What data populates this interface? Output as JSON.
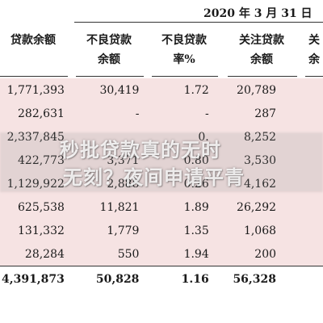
{
  "date_header": "2020 年 3 月 31 日",
  "columns": [
    {
      "line1": "",
      "line2": "贷款余额"
    },
    {
      "line1": "不良贷款",
      "line2": "余额"
    },
    {
      "line1": "不良贷款",
      "line2": "率%"
    },
    {
      "line1": "关注贷款",
      "line2": "余额"
    },
    {
      "line1": "关",
      "line2": "余"
    }
  ],
  "rows": [
    {
      "loan": "1,771,393",
      "npl": "30,419",
      "ratio": "1.72",
      "watch": "20,789"
    },
    {
      "loan": "282,631",
      "npl": "-",
      "ratio": "-",
      "watch": "287"
    },
    {
      "loan": "2,337,845",
      "npl": "",
      "ratio": "0.",
      "watch": "8,252"
    },
    {
      "loan": "422,773",
      "npl": "3,371",
      "ratio": "0.80",
      "watch": "3,530"
    },
    {
      "loan": "1,129,922",
      "npl": "2,888",
      "ratio": "0.26",
      "watch": "4,162"
    },
    {
      "loan": "625,538",
      "npl": "11,821",
      "ratio": "1.89",
      "watch": "26,292"
    },
    {
      "loan": "131,332",
      "npl": "1,779",
      "ratio": "1.35",
      "watch": "1,068"
    },
    {
      "loan": "28,284",
      "npl": "550",
      "ratio": "1.94",
      "watch": "200"
    }
  ],
  "total": {
    "loan": "4,391,873",
    "npl": "50,828",
    "ratio": "1.16",
    "watch": "56,328"
  },
  "watermark": {
    "line1": "秒批贷款真的无时",
    "line2": "无刻？夜间申请平青"
  },
  "colors": {
    "shaded_row": "#f6e3e3",
    "text": "#1a1a1a"
  }
}
